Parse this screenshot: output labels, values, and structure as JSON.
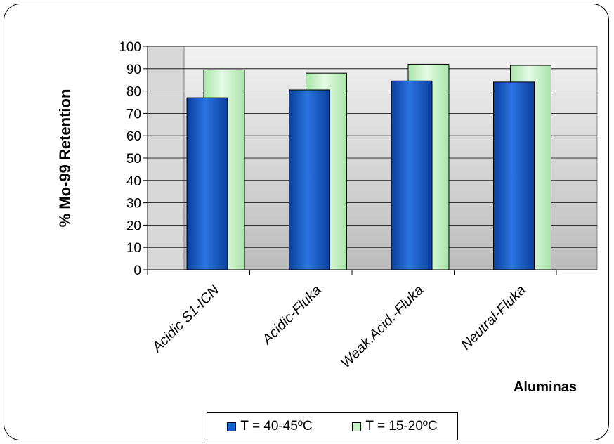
{
  "chart_data": {
    "type": "bar",
    "title": "",
    "xlabel": "Aluminas",
    "ylabel": "% Mo-99 Retention",
    "ylim": [
      0,
      100
    ],
    "yticks": [
      "0",
      "10",
      "20",
      "30",
      "40",
      "50",
      "60",
      "70",
      "80",
      "90",
      "100"
    ],
    "categories": [
      "Acidic S1-ICN",
      "Acidic-Fluka",
      "Weak.Acid.-Fluka",
      "Neutral-Fluka"
    ],
    "series": [
      {
        "name": "T = 40-45ºC",
        "values": [
          77,
          80.5,
          84.5,
          84
        ],
        "color": "#1a5fd0"
      },
      {
        "name": "T = 15-20ºC",
        "values": [
          89.5,
          88,
          92,
          91.5
        ],
        "color": "#c6f2c6"
      }
    ],
    "grid": true,
    "legend_position": "bottom"
  }
}
